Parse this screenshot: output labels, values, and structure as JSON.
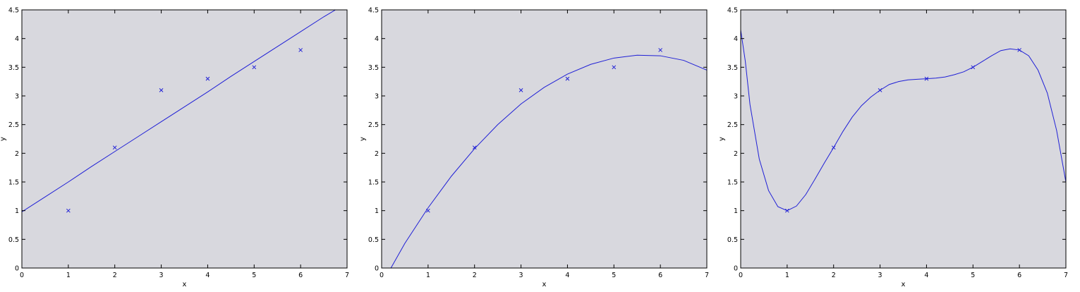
{
  "chart_data": [
    {
      "type": "scatter",
      "xlabel": "x",
      "ylabel": "y",
      "xlim": [
        0,
        7
      ],
      "ylim": [
        0,
        4.5
      ],
      "xticks": [
        "0",
        "1",
        "2",
        "3",
        "4",
        "5",
        "6",
        "7"
      ],
      "yticks": [
        "0",
        "0.5",
        "1",
        "1.5",
        "2",
        "2.5",
        "3",
        "3.5",
        "4",
        "4.5"
      ],
      "grid": false,
      "background_color": "#d8d8de",
      "series_color": "#1f1fd6",
      "points": {
        "x": [
          1,
          2,
          3,
          4,
          5,
          6
        ],
        "y": [
          1.0,
          2.1,
          3.1,
          3.3,
          3.5,
          3.8
        ]
      },
      "fit_line": {
        "x": [
          0.0,
          0.5,
          1.0,
          1.5,
          2.0,
          2.5,
          3.0,
          3.5,
          4.0,
          4.5,
          5.0,
          5.5,
          6.0,
          6.5,
          6.75
        ],
        "y": [
          0.98,
          1.24,
          1.5,
          1.77,
          2.03,
          2.29,
          2.55,
          2.81,
          3.07,
          3.34,
          3.6,
          3.86,
          4.12,
          4.38,
          4.5
        ]
      }
    },
    {
      "type": "scatter",
      "xlabel": "x",
      "ylabel": "y",
      "xlim": [
        0,
        7
      ],
      "ylim": [
        0,
        4.5
      ],
      "xticks": [
        "0",
        "1",
        "2",
        "3",
        "4",
        "5",
        "6",
        "7"
      ],
      "yticks": [
        "0",
        "0.5",
        "1",
        "1.5",
        "2",
        "2.5",
        "3",
        "3.5",
        "4",
        "4.5"
      ],
      "grid": false,
      "background_color": "#d8d8de",
      "series_color": "#1f1fd6",
      "points": {
        "x": [
          1,
          2,
          3,
          4,
          5,
          6
        ],
        "y": [
          1.0,
          2.1,
          3.1,
          3.3,
          3.5,
          3.8
        ]
      },
      "fit_line": {
        "x": [
          0.2,
          0.5,
          1.0,
          1.5,
          2.0,
          2.5,
          3.0,
          3.5,
          4.0,
          4.5,
          5.0,
          5.5,
          6.0,
          6.5,
          7.0
        ],
        "y": [
          0.0,
          0.43,
          1.05,
          1.6,
          2.08,
          2.5,
          2.86,
          3.15,
          3.38,
          3.55,
          3.66,
          3.71,
          3.7,
          3.62,
          3.45
        ]
      }
    },
    {
      "type": "scatter",
      "xlabel": "x",
      "ylabel": "y",
      "xlim": [
        0,
        7
      ],
      "ylim": [
        0,
        4.5
      ],
      "xticks": [
        "0",
        "1",
        "2",
        "3",
        "4",
        "5",
        "6",
        "7"
      ],
      "yticks": [
        "0",
        "0.5",
        "1",
        "1.5",
        "2",
        "2.5",
        "3",
        "3.5",
        "4",
        "4.5"
      ],
      "grid": false,
      "background_color": "#d8d8de",
      "series_color": "#1f1fd6",
      "points": {
        "x": [
          1,
          2,
          3,
          4,
          5,
          6
        ],
        "y": [
          1.0,
          2.1,
          3.1,
          3.3,
          3.5,
          3.8
        ]
      },
      "fit_line": {
        "x": [
          0.0,
          0.1,
          0.2,
          0.4,
          0.6,
          0.8,
          1.0,
          1.2,
          1.4,
          1.6,
          1.8,
          2.0,
          2.2,
          2.4,
          2.6,
          2.8,
          3.0,
          3.2,
          3.4,
          3.6,
          3.8,
          4.0,
          4.2,
          4.4,
          4.6,
          4.8,
          5.0,
          5.2,
          5.4,
          5.6,
          5.8,
          6.0,
          6.2,
          6.4,
          6.6,
          6.8,
          7.0
        ],
        "y": [
          4.15,
          3.6,
          2.85,
          1.9,
          1.35,
          1.07,
          1.0,
          1.08,
          1.28,
          1.55,
          1.83,
          2.1,
          2.38,
          2.63,
          2.83,
          2.98,
          3.1,
          3.2,
          3.25,
          3.28,
          3.29,
          3.3,
          3.31,
          3.33,
          3.37,
          3.42,
          3.5,
          3.6,
          3.7,
          3.79,
          3.82,
          3.8,
          3.7,
          3.45,
          3.05,
          2.4,
          1.5
        ]
      }
    }
  ]
}
